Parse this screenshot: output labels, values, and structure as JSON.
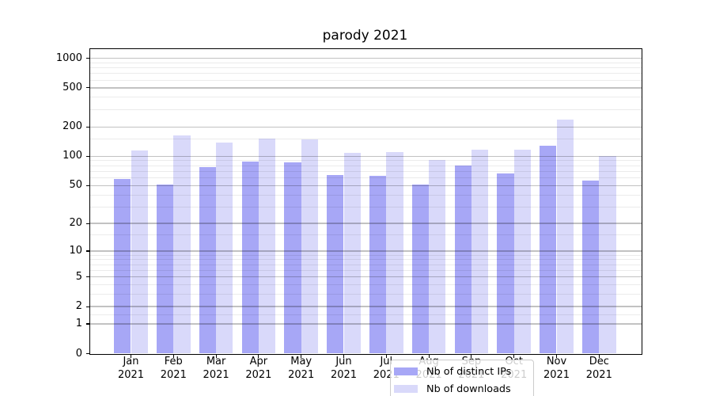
{
  "chart_data": {
    "type": "bar",
    "title": "parody 2021",
    "categories": [
      "Jan",
      "Feb",
      "Mar",
      "Apr",
      "May",
      "Jun",
      "Jul",
      "Aug",
      "Sep",
      "Oct",
      "Nov",
      "Dec"
    ],
    "category_line2": "2021",
    "series": [
      {
        "name": "Nb of distinct IPs",
        "color": "#a7a7f6",
        "values": [
          58,
          51,
          78,
          88,
          87,
          64,
          63,
          51,
          80,
          67,
          128,
          56
        ]
      },
      {
        "name": "Nb of downloads",
        "color": "#d9d9fa",
        "values": [
          114,
          164,
          138,
          151,
          149,
          109,
          111,
          91,
          117,
          118,
          238,
          100
        ]
      }
    ],
    "y_axis": {
      "scale": "symlog-like (log10 of 1+value)",
      "ticks": [
        0,
        1,
        2,
        5,
        10,
        20,
        50,
        100,
        200,
        500,
        1000
      ],
      "minor_gridlines": [
        1.5,
        3,
        4,
        6,
        7,
        8,
        9,
        15,
        30,
        40,
        60,
        70,
        80,
        90,
        150,
        300,
        400,
        600,
        700,
        800,
        900
      ],
      "max": 1250
    },
    "xlabel": "",
    "ylabel": "",
    "grid": true,
    "legend_position": "lower center"
  }
}
